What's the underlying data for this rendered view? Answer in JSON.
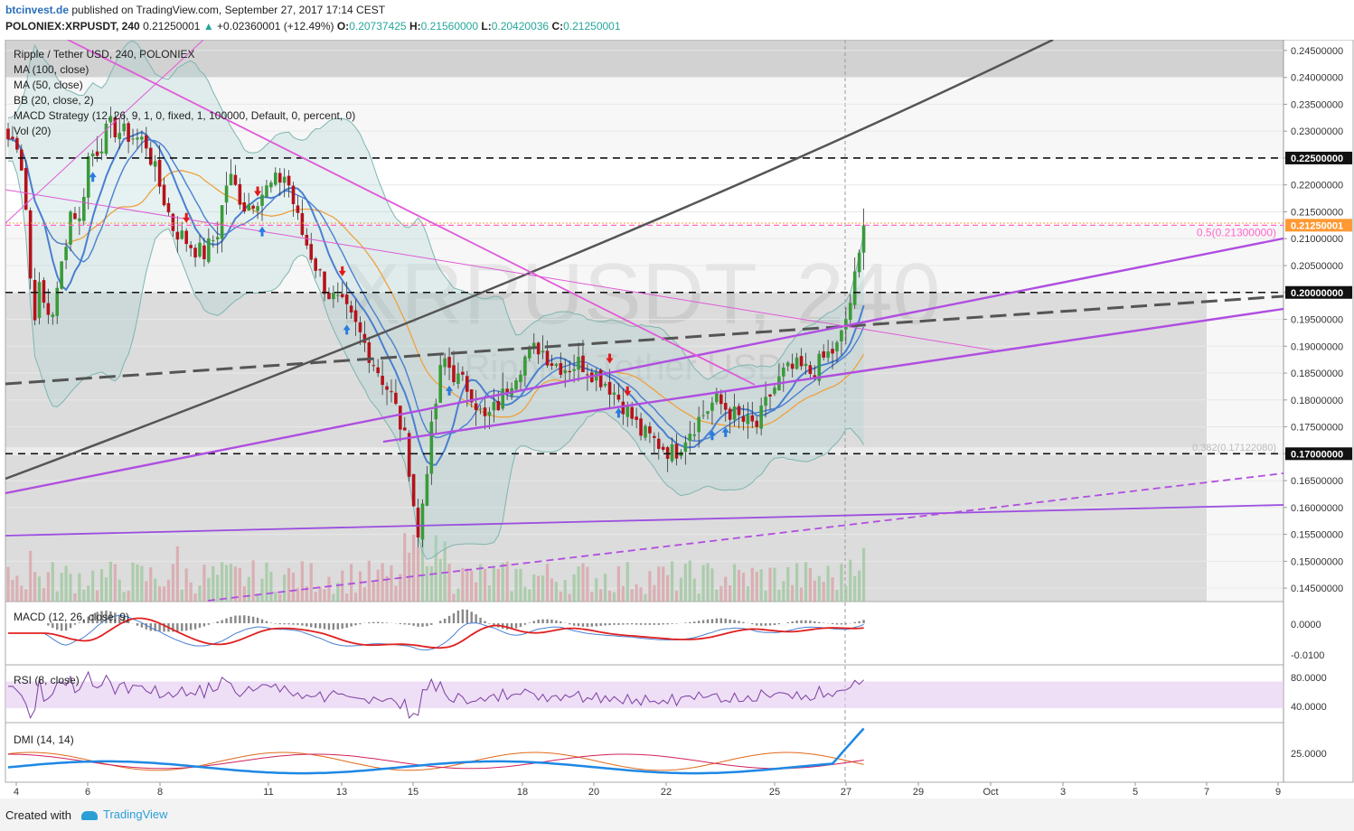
{
  "header": {
    "brand": "btcinvest.de",
    "published": "published on TradingView.com, September 27, 2017 17:14 CEST",
    "symbol": "POLONIEX:XRPUSDT, 240",
    "price": "0.21250001",
    "change": "+0.02360001 (+12.49%)",
    "o_label": "O:",
    "o_value": "0.20737425",
    "h_label": "H:",
    "h_value": "0.21560000",
    "l_label": "L:",
    "l_value": "0.20420036",
    "c_label": "C:",
    "c_value": "0.21250001"
  },
  "legend": {
    "title": "Ripple / Tether USD, 240, POLONIEX",
    "ma100": "MA (100, close)",
    "ma50": "MA (50, close)",
    "bb": "BB (20, close, 2)",
    "macd_strategy": "MACD Strategy (12, 26, 9, 1, 0, fixed, 1, 100000, Default, 0, percent, 0)",
    "vol": "Vol (20)"
  },
  "watermark": {
    "symbol": "XRPUSDT, 240",
    "name": "Ripple / Tether USD"
  },
  "panes": {
    "macd": {
      "label": "MACD (12, 26, close, 9)",
      "ticks": [
        "0.0000",
        "-0.0100"
      ]
    },
    "rsi": {
      "label": "RSI (8, close)",
      "ticks": [
        "80.0000",
        "40.0000"
      ]
    },
    "dmi": {
      "label": "DMI (14, 14)",
      "ticks": [
        "25.0000"
      ]
    }
  },
  "footer": {
    "created": "Created with",
    "tradingview": "TradingView"
  },
  "colors": {
    "up": "#3a9a3a",
    "down": "#b5121b",
    "ma100": "#f0a040",
    "ma50": "#4a7fd0",
    "bb": "#7fb5b0",
    "trend": "#b04ee0",
    "fib": "#ff66cc",
    "curve": "#555555"
  },
  "chart_data": [
    {
      "type": "candlestick",
      "ylim": [
        0.1425,
        0.247
      ],
      "y_ticks": [
        "0.24500000",
        "0.24000000",
        "0.23500000",
        "0.23000000",
        "0.22500000",
        "0.22000000",
        "0.21500000",
        "0.21000000",
        "0.20500000",
        "0.20000000",
        "0.19500000",
        "0.19000000",
        "0.18500000",
        "0.18000000",
        "0.17500000",
        "0.17000000",
        "0.16500000",
        "0.16000000",
        "0.15500000",
        "0.15000000",
        "0.14500000"
      ],
      "x_labels": [
        "4",
        "6",
        "8",
        "11",
        "13",
        "15",
        "18",
        "20",
        "22",
        "25",
        "27",
        "29",
        "Oct",
        "3",
        "5",
        "7",
        "9"
      ],
      "highlighted_levels": [
        {
          "label": "0.22500000",
          "value": 0.225
        },
        {
          "label": "0.21250001",
          "value": 0.2125
        },
        {
          "label": "0.20000000",
          "value": 0.2
        },
        {
          "label": "0.17000000",
          "value": 0.17
        }
      ],
      "fib_labels": [
        "0.5(0.21300000)",
        "0.382(0.17122080)"
      ],
      "last_price": 0.2125
    },
    {
      "type": "line",
      "name": "MACD (12, 26, close, 9)"
    },
    {
      "type": "line",
      "name": "RSI (8, close)",
      "band": [
        40,
        70
      ]
    },
    {
      "type": "line",
      "name": "DMI (14, 14)"
    }
  ]
}
